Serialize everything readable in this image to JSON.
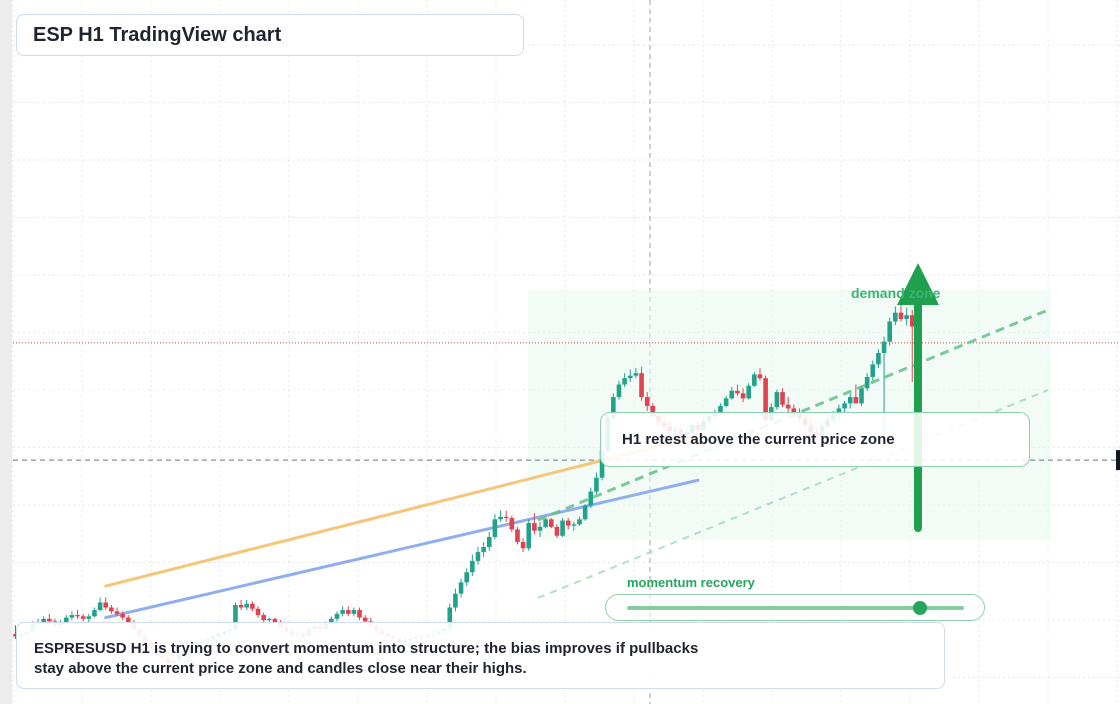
{
  "title": "ESP H1 TradingView chart",
  "chart_data": {
    "type": "candlestick",
    "symbol": "ESPRESUSD",
    "timeframe": "H1",
    "candles": [
      [
        12.7,
        13.4,
        12.3,
        12.5
      ],
      [
        12.5,
        12.9,
        12.3,
        12.7
      ],
      [
        12.7,
        13.2,
        12.4,
        12.9
      ],
      [
        12.9,
        13.7,
        12.8,
        13.5
      ],
      [
        13.5,
        13.9,
        13.2,
        13.6
      ],
      [
        13.6,
        14.1,
        13.4,
        13.9
      ],
      [
        13.9,
        14.3,
        13.5,
        13.7
      ],
      [
        13.7,
        13.9,
        13.2,
        13.4
      ],
      [
        13.4,
        13.8,
        13.1,
        13.6
      ],
      [
        13.6,
        14.2,
        13.4,
        14.0
      ],
      [
        14.0,
        14.5,
        13.8,
        14.2
      ],
      [
        14.2,
        14.6,
        13.9,
        14.1
      ],
      [
        14.1,
        14.3,
        13.7,
        13.9
      ],
      [
        13.9,
        14.3,
        13.6,
        14.1
      ],
      [
        14.1,
        14.8,
        14.0,
        14.6
      ],
      [
        14.6,
        15.6,
        14.5,
        15.2
      ],
      [
        15.2,
        15.6,
        14.6,
        14.8
      ],
      [
        14.8,
        15.0,
        14.3,
        14.5
      ],
      [
        14.5,
        14.8,
        14.1,
        14.3
      ],
      [
        14.3,
        14.5,
        13.8,
        14.0
      ],
      [
        14.0,
        14.2,
        13.4,
        13.6
      ],
      [
        13.6,
        13.8,
        13.0,
        13.1
      ],
      [
        13.1,
        13.3,
        12.5,
        12.6
      ],
      [
        12.6,
        12.8,
        11.9,
        12.0
      ],
      [
        12.0,
        12.3,
        11.5,
        11.6
      ],
      [
        11.6,
        11.8,
        11.0,
        11.2
      ],
      [
        11.2,
        11.4,
        10.6,
        10.8
      ],
      [
        10.8,
        11.0,
        10.3,
        10.4
      ],
      [
        10.4,
        10.7,
        10.3,
        10.6
      ],
      [
        10.6,
        11.2,
        10.4,
        11.0
      ],
      [
        11.0,
        11.6,
        10.8,
        11.4
      ],
      [
        11.4,
        11.9,
        11.2,
        11.7
      ],
      [
        11.7,
        12.1,
        11.5,
        11.9
      ],
      [
        11.9,
        12.3,
        11.7,
        12.1
      ],
      [
        12.1,
        12.5,
        11.9,
        12.3
      ],
      [
        12.3,
        12.7,
        12.1,
        12.5
      ],
      [
        12.5,
        12.9,
        12.3,
        12.7
      ],
      [
        12.7,
        13.0,
        12.5,
        12.9
      ],
      [
        12.9,
        13.3,
        12.6,
        13.1
      ],
      [
        13.1,
        15.2,
        13.0,
        15.0
      ],
      [
        15.0,
        15.4,
        14.6,
        14.8
      ],
      [
        14.8,
        15.4,
        14.6,
        15.1
      ],
      [
        15.1,
        15.3,
        14.5,
        14.7
      ],
      [
        14.7,
        14.9,
        14.0,
        14.2
      ],
      [
        14.2,
        14.4,
        13.6,
        13.8
      ],
      [
        13.8,
        14.0,
        13.5,
        13.9
      ],
      [
        13.9,
        14.0,
        13.5,
        13.6
      ],
      [
        13.6,
        13.8,
        13.1,
        13.2
      ],
      [
        13.2,
        13.4,
        12.8,
        12.9
      ],
      [
        12.9,
        13.1,
        12.5,
        12.6
      ],
      [
        12.6,
        12.8,
        12.3,
        12.7
      ],
      [
        12.7,
        13.0,
        12.4,
        12.5
      ],
      [
        12.5,
        13.3,
        12.4,
        13.1
      ],
      [
        13.1,
        13.5,
        12.9,
        13.3
      ],
      [
        13.3,
        13.5,
        12.9,
        13.1
      ],
      [
        13.1,
        13.7,
        13.0,
        13.5
      ],
      [
        13.5,
        14.1,
        13.3,
        13.9
      ],
      [
        13.9,
        14.5,
        13.7,
        14.3
      ],
      [
        14.3,
        14.9,
        14.1,
        14.6
      ],
      [
        14.6,
        14.9,
        14.1,
        14.3
      ],
      [
        14.3,
        14.8,
        14.1,
        14.6
      ],
      [
        14.6,
        14.8,
        13.8,
        14.0
      ],
      [
        14.0,
        14.2,
        13.5,
        13.7
      ],
      [
        13.7,
        14.0,
        13.2,
        13.4
      ],
      [
        13.4,
        13.6,
        12.9,
        13.0
      ],
      [
        13.0,
        13.2,
        12.6,
        12.7
      ],
      [
        12.7,
        12.9,
        12.4,
        12.5
      ],
      [
        12.5,
        12.7,
        12.2,
        12.3
      ],
      [
        12.3,
        12.5,
        12.0,
        12.1
      ],
      [
        12.1,
        12.4,
        12.0,
        12.2
      ],
      [
        12.2,
        12.5,
        12.1,
        12.3
      ],
      [
        12.3,
        12.6,
        12.1,
        12.4
      ],
      [
        12.4,
        12.7,
        12.2,
        12.5
      ],
      [
        12.5,
        12.7,
        12.3,
        12.6
      ],
      [
        12.6,
        12.8,
        12.4,
        12.7
      ],
      [
        12.7,
        13.0,
        12.5,
        12.9
      ],
      [
        12.9,
        13.2,
        12.7,
        13.1
      ],
      [
        13.1,
        15.1,
        13.0,
        14.8
      ],
      [
        14.8,
        16.3,
        14.5,
        15.9
      ],
      [
        15.9,
        17.1,
        15.6,
        16.8
      ],
      [
        16.8,
        17.9,
        16.5,
        17.6
      ],
      [
        17.6,
        19.0,
        17.3,
        18.5
      ],
      [
        18.5,
        19.6,
        18.2,
        19.2
      ],
      [
        19.2,
        20.0,
        18.8,
        19.6
      ],
      [
        19.6,
        20.8,
        19.3,
        20.4
      ],
      [
        20.4,
        22.2,
        20.2,
        21.8
      ],
      [
        21.8,
        22.5,
        21.6,
        22.0
      ],
      [
        22.0,
        22.5,
        21.6,
        21.9
      ],
      [
        21.9,
        22.1,
        20.8,
        21.0
      ],
      [
        21.0,
        21.2,
        19.8,
        20.0
      ],
      [
        20.0,
        20.3,
        19.2,
        19.5
      ],
      [
        19.5,
        21.8,
        19.3,
        21.5
      ],
      [
        21.5,
        22.3,
        20.6,
        20.9
      ],
      [
        20.9,
        21.6,
        20.4,
        21.2
      ],
      [
        21.2,
        21.9,
        21.1,
        21.8
      ],
      [
        21.8,
        21.9,
        21.1,
        21.2
      ],
      [
        21.2,
        21.4,
        20.3,
        20.5
      ],
      [
        20.5,
        21.9,
        20.4,
        21.7
      ],
      [
        21.7,
        21.9,
        21.0,
        21.3
      ],
      [
        21.3,
        21.6,
        20.9,
        21.4
      ],
      [
        21.4,
        22.0,
        21.3,
        21.8
      ],
      [
        21.8,
        23.0,
        21.7,
        22.9
      ],
      [
        22.9,
        24.3,
        22.7,
        24.0
      ],
      [
        24.0,
        25.5,
        23.8,
        25.1
      ],
      [
        25.1,
        27.6,
        24.9,
        27.2
      ],
      [
        27.2,
        30.2,
        27.1,
        29.9
      ],
      [
        29.9,
        31.8,
        29.7,
        31.5
      ],
      [
        31.5,
        32.8,
        31.3,
        32.5
      ],
      [
        32.5,
        33.4,
        32.3,
        33.0
      ],
      [
        33.0,
        33.7,
        32.7,
        33.2
      ],
      [
        33.2,
        33.8,
        33.0,
        33.4
      ],
      [
        33.4,
        33.9,
        31.2,
        31.5
      ],
      [
        31.5,
        31.9,
        30.4,
        30.8
      ],
      [
        30.8,
        31.0,
        29.8,
        30.0
      ],
      [
        30.0,
        30.3,
        29.2,
        29.5
      ],
      [
        29.5,
        29.9,
        28.9,
        29.2
      ],
      [
        29.2,
        29.6,
        28.5,
        28.8
      ],
      [
        28.8,
        29.2,
        28.4,
        28.9
      ],
      [
        28.9,
        29.3,
        28.2,
        28.5
      ],
      [
        28.5,
        29.0,
        28.1,
        28.7
      ],
      [
        28.7,
        29.4,
        28.6,
        29.3
      ],
      [
        29.3,
        29.6,
        28.7,
        28.9
      ],
      [
        28.9,
        29.8,
        28.8,
        29.6
      ],
      [
        29.6,
        30.2,
        29.3,
        30.0
      ],
      [
        30.0,
        30.5,
        29.6,
        30.3
      ],
      [
        30.3,
        31.0,
        30.1,
        30.8
      ],
      [
        30.8,
        31.6,
        30.7,
        31.4
      ],
      [
        31.4,
        32.3,
        31.3,
        32.0
      ],
      [
        32.0,
        32.5,
        31.6,
        31.8
      ],
      [
        31.8,
        32.2,
        31.1,
        31.4
      ],
      [
        31.4,
        32.6,
        31.3,
        32.4
      ],
      [
        32.4,
        33.5,
        32.3,
        33.3
      ],
      [
        33.3,
        33.8,
        32.8,
        33.0
      ],
      [
        33.0,
        33.2,
        29.4,
        29.7
      ],
      [
        29.7,
        31.0,
        29.6,
        30.7
      ],
      [
        30.7,
        32.1,
        30.5,
        31.9
      ],
      [
        31.9,
        32.2,
        30.7,
        30.9
      ],
      [
        30.9,
        31.5,
        30.3,
        30.6
      ],
      [
        30.6,
        30.9,
        29.9,
        30.2
      ],
      [
        30.2,
        30.6,
        29.5,
        29.8
      ],
      [
        29.8,
        30.1,
        29.0,
        29.3
      ],
      [
        29.3,
        29.8,
        28.4,
        28.7
      ],
      [
        28.7,
        29.2,
        28.1,
        28.4
      ],
      [
        28.4,
        29.5,
        28.2,
        29.2
      ],
      [
        29.2,
        29.9,
        29.0,
        29.7
      ],
      [
        29.7,
        30.4,
        29.5,
        30.2
      ],
      [
        30.2,
        30.9,
        29.8,
        30.6
      ],
      [
        30.6,
        31.2,
        30.2,
        31.0
      ],
      [
        31.0,
        31.8,
        30.6,
        31.5
      ],
      [
        31.5,
        32.5,
        31.1,
        31.0
      ],
      [
        31.0,
        32.4,
        30.8,
        32.2
      ],
      [
        32.2,
        33.4,
        32.0,
        33.1
      ],
      [
        33.1,
        34.4,
        32.8,
        34.1
      ],
      [
        34.1,
        35.3,
        33.8,
        35.0
      ],
      [
        35.0,
        36.3,
        27.5,
        35.9
      ],
      [
        35.9,
        37.8,
        35.6,
        37.5
      ],
      [
        37.5,
        38.7,
        37.2,
        38.2
      ],
      [
        38.2,
        38.8,
        37.5,
        37.7
      ],
      [
        37.7,
        38.6,
        37.2,
        38.0
      ],
      [
        38.0,
        38.4,
        32.7,
        37.1
      ],
      [
        37.1,
        37.4,
        35.9,
        36.9
      ]
    ],
    "current_price": 26.5,
    "trendlines": [
      {
        "x": [
          16,
          121
        ],
        "y": [
          14.0,
          24.9
        ]
      },
      {
        "x": [
          16,
          121
        ],
        "y": [
          16.5,
          28.4
        ]
      }
    ],
    "horizontal_levels": [
      35.8,
      26.5
    ],
    "zone_label": "demand zone",
    "colors": {
      "up": "#22a18b",
      "down": "#e34150",
      "trend_primary": "#f5c678",
      "trend_secondary": "#8eaeee",
      "accent": "#1ea04f"
    }
  },
  "annotations": {
    "retest_note": "H1 retest above the current price zone",
    "momentum_label": "momentum recovery",
    "momentum_level": 0.87,
    "summary_line1": "ESPRESUSD H1 is trying to convert momentum into structure; the bias improves if pullbacks",
    "summary_line2": "stay above the current price zone and candles close near their highs."
  }
}
